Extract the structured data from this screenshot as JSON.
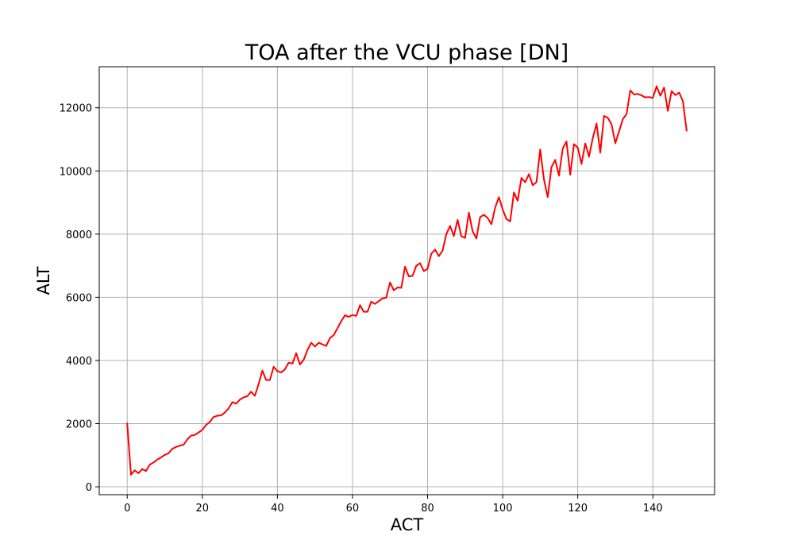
{
  "chart_data": {
    "type": "line",
    "title": "TOA after the VCU phase [DN]",
    "xlabel": "ACT",
    "ylabel": "ALT",
    "xlim": [
      -7.45,
      156.45
    ],
    "ylim": [
      -250,
      13300
    ],
    "xticks": [
      0,
      20,
      40,
      60,
      80,
      100,
      120,
      140
    ],
    "yticks": [
      0,
      2000,
      4000,
      6000,
      8000,
      10000,
      12000
    ],
    "xtick_labels": [
      "0",
      "20",
      "40",
      "60",
      "80",
      "100",
      "120",
      "140"
    ],
    "ytick_labels": [
      "0",
      "2000",
      "4000",
      "6000",
      "8000",
      "10000",
      "12000"
    ],
    "grid": true,
    "series": [
      {
        "color": "#ff0000",
        "x": [
          0,
          1,
          2,
          3,
          4,
          5,
          6,
          7,
          8,
          9,
          10,
          11,
          12,
          13,
          14,
          15,
          16,
          17,
          18,
          19,
          20,
          21,
          22,
          23,
          24,
          25,
          26,
          27,
          28,
          29,
          30,
          31,
          32,
          33,
          34,
          35,
          36,
          37,
          38,
          39,
          40,
          41,
          42,
          43,
          44,
          45,
          46,
          47,
          48,
          49,
          50,
          51,
          52,
          53,
          54,
          55,
          56,
          57,
          58,
          59,
          60,
          61,
          62,
          63,
          64,
          65,
          66,
          67,
          68,
          69,
          70,
          71,
          72,
          73,
          74,
          75,
          76,
          77,
          78,
          79,
          80,
          81,
          82,
          83,
          84,
          85,
          86,
          87,
          88,
          89,
          90,
          91,
          92,
          93,
          94,
          95,
          96,
          97,
          98,
          99,
          100,
          101,
          102,
          103,
          104,
          105,
          106,
          107,
          108,
          109,
          110,
          111,
          112,
          113,
          114,
          115,
          116,
          117,
          118,
          119,
          120,
          121,
          122,
          123,
          124,
          125,
          126,
          127,
          128,
          129,
          130,
          131,
          132,
          133,
          134,
          135,
          136,
          137,
          138,
          139,
          140,
          141,
          142,
          143,
          144,
          145,
          146,
          147,
          148,
          149
        ],
        "y": [
          2000,
          380,
          520,
          430,
          560,
          500,
          700,
          770,
          860,
          930,
          1010,
          1060,
          1200,
          1260,
          1300,
          1330,
          1500,
          1620,
          1640,
          1720,
          1800,
          1960,
          2050,
          2210,
          2250,
          2260,
          2350,
          2480,
          2680,
          2630,
          2760,
          2830,
          2870,
          3010,
          2880,
          3250,
          3680,
          3380,
          3380,
          3800,
          3660,
          3620,
          3720,
          3930,
          3900,
          4230,
          3870,
          4020,
          4330,
          4560,
          4440,
          4560,
          4510,
          4460,
          4710,
          4800,
          5020,
          5240,
          5430,
          5380,
          5440,
          5410,
          5750,
          5540,
          5540,
          5860,
          5790,
          5880,
          5960,
          5990,
          6470,
          6220,
          6310,
          6300,
          6970,
          6660,
          6680,
          7000,
          7080,
          6830,
          6900,
          7380,
          7510,
          7300,
          7480,
          8000,
          8260,
          7940,
          8450,
          7930,
          7880,
          8680,
          8090,
          7860,
          8540,
          8610,
          8510,
          8310,
          8840,
          9170,
          8780,
          8480,
          8400,
          9320,
          9060,
          9780,
          9640,
          9900,
          9550,
          9640,
          10680,
          9730,
          9170,
          10120,
          10350,
          9850,
          10710,
          10930,
          9880,
          10850,
          10740,
          10220,
          10870,
          10450,
          11040,
          11500,
          10580,
          11740,
          11680,
          11480,
          10880,
          11250,
          11640,
          11800,
          12550,
          12420,
          12440,
          12390,
          12330,
          12340,
          12310,
          12680,
          12380,
          12640,
          11900,
          12530,
          12400,
          12480,
          12210,
          11280
        ]
      }
    ]
  }
}
